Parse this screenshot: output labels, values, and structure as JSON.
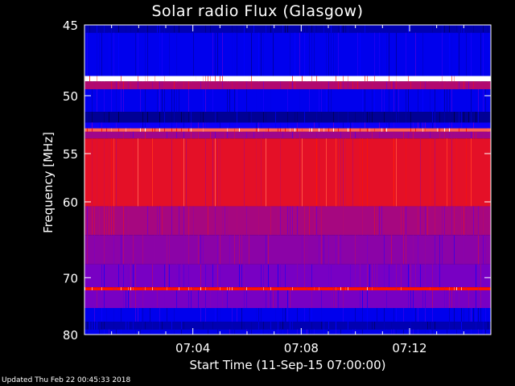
{
  "chart_data": {
    "type": "heatmap",
    "title": "Solar radio Flux (Glasgow)",
    "xlabel": "Start Time (11-Sep-15 07:00:00)",
    "ylabel": "Frequency [MHz]",
    "xlim": [
      "07:00",
      "07:15"
    ],
    "ylim": [
      45,
      80
    ],
    "x_ticks": [
      "07:04",
      "07:08",
      "07:12"
    ],
    "x_tick_minutes": [
      4,
      8,
      12
    ],
    "y_ticks": [
      45,
      50,
      55,
      60,
      70,
      80
    ],
    "y_scale": "reciprocal",
    "colormap": "blue-red-white",
    "bands_mhz": [
      {
        "from": 45.0,
        "to": 45.5,
        "level": 0.2
      },
      {
        "from": 45.5,
        "to": 48.5,
        "level": 0.3
      },
      {
        "from": 48.5,
        "to": 48.9,
        "level": 1.0
      },
      {
        "from": 48.9,
        "to": 49.5,
        "level": 0.65
      },
      {
        "from": 49.5,
        "to": 51.3,
        "level": 0.3
      },
      {
        "from": 51.3,
        "to": 52.2,
        "level": 0.15
      },
      {
        "from": 52.2,
        "to": 52.7,
        "level": 0.35
      },
      {
        "from": 52.7,
        "to": 53.0,
        "level": 0.9
      },
      {
        "from": 53.0,
        "to": 53.6,
        "level": 0.6
      },
      {
        "from": 53.6,
        "to": 60.5,
        "level": 0.78
      },
      {
        "from": 60.5,
        "to": 64.0,
        "level": 0.62
      },
      {
        "from": 64.0,
        "to": 68.0,
        "level": 0.55
      },
      {
        "from": 68.0,
        "to": 71.5,
        "level": 0.5
      },
      {
        "from": 71.5,
        "to": 72.0,
        "level": 0.85
      },
      {
        "from": 72.0,
        "to": 75.0,
        "level": 0.5
      },
      {
        "from": 75.0,
        "to": 77.5,
        "level": 0.3
      },
      {
        "from": 77.5,
        "to": 79.0,
        "level": 0.2
      },
      {
        "from": 79.0,
        "to": 80.0,
        "level": 0.3
      }
    ]
  },
  "footer": {
    "updated": "Updated Thu Feb 22 00:45:33 2018"
  }
}
